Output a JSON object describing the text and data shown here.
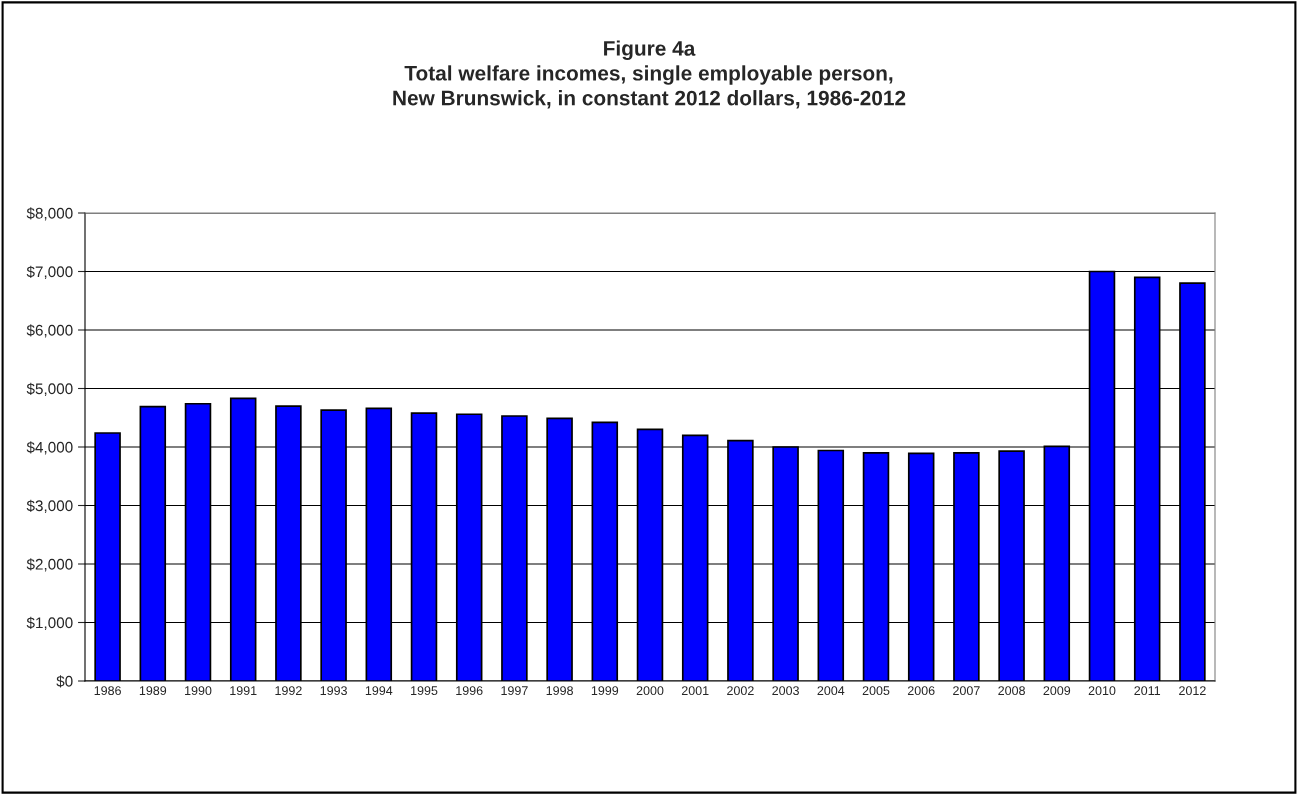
{
  "chart_data": {
    "type": "bar",
    "title": "Figure 4a\nTotal welfare incomes, single employable person,\nNew Brunswick, in constant 2012 dollars, 1986-2012",
    "categories": [
      "1986",
      "1989",
      "1990",
      "1991",
      "1992",
      "1993",
      "1994",
      "1995",
      "1996",
      "1997",
      "1998",
      "1999",
      "2000",
      "2001",
      "2002",
      "2003",
      "2004",
      "2005",
      "2006",
      "2007",
      "2008",
      "2009",
      "2010",
      "2011",
      "2012"
    ],
    "values": [
      4240,
      4690,
      4740,
      4830,
      4700,
      4630,
      4660,
      4580,
      4560,
      4530,
      4490,
      4420,
      4300,
      4200,
      4110,
      4000,
      3940,
      3900,
      3890,
      3900,
      3930,
      4010,
      7000,
      6900,
      6800
    ],
    "color": "#0000ff",
    "ylim": [
      0,
      8000
    ],
    "yticks": [
      {
        "value": 0,
        "label": "$0"
      },
      {
        "value": 1000,
        "label": "$1,000"
      },
      {
        "value": 2000,
        "label": "$2,000"
      },
      {
        "value": 3000,
        "label": "$3,000"
      },
      {
        "value": 4000,
        "label": "$4,000"
      },
      {
        "value": 5000,
        "label": "$5,000"
      },
      {
        "value": 6000,
        "label": "$6,000"
      },
      {
        "value": 7000,
        "label": "$7,000"
      },
      {
        "value": 8000,
        "label": "$8,000"
      }
    ],
    "grid": "y"
  }
}
